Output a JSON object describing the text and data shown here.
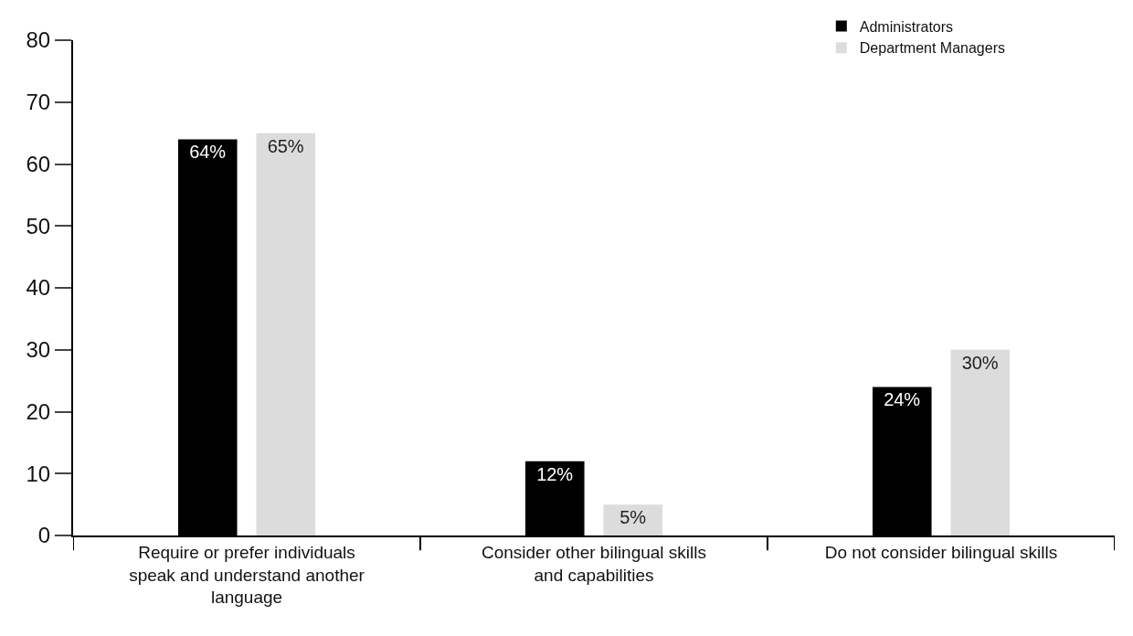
{
  "chart_data": {
    "type": "bar",
    "categories": [
      "Require or prefer individuals speak and understand another language",
      "Consider other bilingual skills and capabilities",
      "Do not consider bilingual skills"
    ],
    "series": [
      {
        "name": "Administrators",
        "color": "#000000",
        "values": [
          64,
          12,
          24
        ],
        "value_labels": [
          "64%",
          "12%",
          "24%"
        ]
      },
      {
        "name": "Department Managers",
        "color": "#dcdcdc",
        "values": [
          65,
          5,
          30
        ],
        "value_labels": [
          "65%",
          "5%",
          "30%"
        ]
      }
    ],
    "ylim": [
      0,
      80
    ],
    "yticks": [
      0,
      10,
      20,
      30,
      40,
      50,
      60,
      70,
      80
    ],
    "legend": "top right"
  }
}
